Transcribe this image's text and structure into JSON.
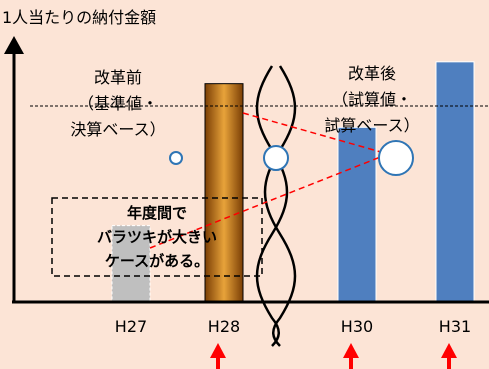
{
  "diagram": {
    "y_axis_label": "1人当たりの納付金額",
    "group_left": {
      "line1": "改革前",
      "line2": "（基準値・",
      "line3": "決算ベース）"
    },
    "group_right": {
      "line1": "改革後",
      "line2": "（試算値・",
      "line3": "試算ベース）"
    },
    "note": {
      "line1": "年度間で",
      "line2": "バラツキが大きい",
      "line3": "ケースがある。"
    },
    "colors": {
      "background": "#fce4d6",
      "h27_bar": "#bfbfbf",
      "h28_bar": "#c07a1c",
      "h30_bar": "#4f7fbf",
      "h31_bar": "#4f7fbf",
      "arrow": "#ff0000",
      "connector": "#ff0000"
    }
  },
  "chart_data": {
    "type": "bar",
    "categories": [
      "H27",
      "H28",
      "H30",
      "H31"
    ],
    "x_tick_labels": [
      "H27",
      "H28",
      "H30",
      "H31"
    ],
    "values": [
      0.35,
      1.0,
      0.8,
      1.1
    ],
    "bar_colors": [
      "#bfbfbf",
      "#c07a1c",
      "#4f7fbf",
      "#4f7fbf"
    ],
    "title": "",
    "xlabel": "",
    "ylabel": "1人当たりの納付金額",
    "ylim": [
      0,
      1.2
    ],
    "grid": false,
    "has_axis_break": true,
    "marked_categories": [
      "H28",
      "H30",
      "H31"
    ]
  }
}
